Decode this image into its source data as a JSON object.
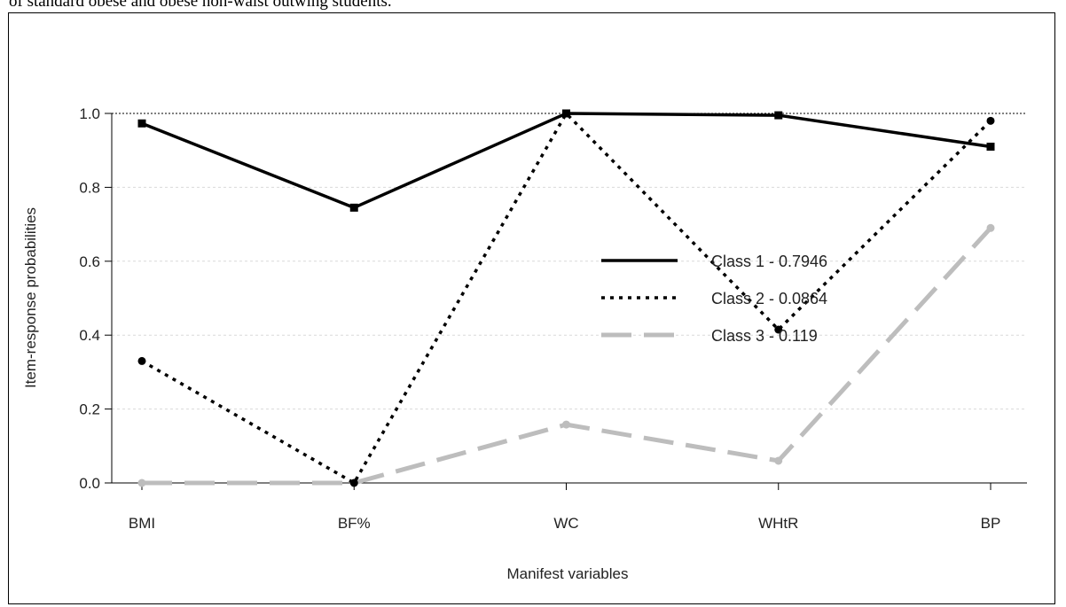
{
  "caption": "of standard obese and obese non-waist outwing students.",
  "chart_data": {
    "type": "line",
    "title": "",
    "xlabel": "Manifest variables",
    "ylabel": "Item-response probabilities",
    "categories": [
      "BMI",
      "BF%",
      "WC",
      "WHtR",
      "BP"
    ],
    "ylim": [
      0,
      1
    ],
    "yticks": [
      "0.0",
      "0.2",
      "0.4",
      "0.6",
      "0.8",
      "1.0"
    ],
    "grid": true,
    "legend_position": "center-right",
    "series": [
      {
        "name": "Class 1 - 0.7946",
        "values": [
          0.973,
          0.745,
          1.0,
          0.995,
          0.91
        ],
        "color": "#000000",
        "style": "solid",
        "marker": "square"
      },
      {
        "name": "Class 2 - 0.0864",
        "values": [
          0.33,
          0.0,
          1.0,
          0.415,
          0.98
        ],
        "color": "#000000",
        "style": "dotted",
        "marker": "circle"
      },
      {
        "name": "Class 3 - 0.119",
        "values": [
          0.0,
          0.0,
          0.158,
          0.06,
          0.69
        ],
        "color": "#bdbdbd",
        "style": "dashed",
        "marker": "circle"
      }
    ]
  }
}
